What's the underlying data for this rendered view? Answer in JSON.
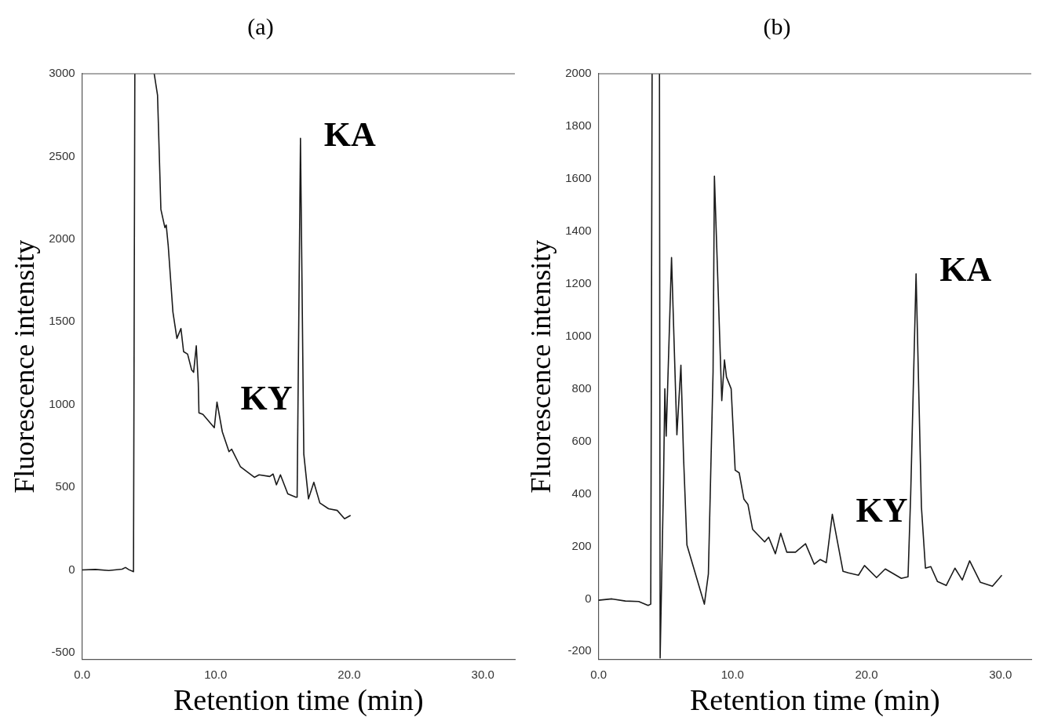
{
  "chart_data": [
    {
      "type": "line",
      "title": "(a)",
      "xlabel": "Retention time (min)",
      "ylabel": "Fluorescence intensity",
      "xlim": [
        0,
        32.4
      ],
      "ylim": [
        -540,
        3000
      ],
      "xticks": [
        {
          "value": 0,
          "label": "0.0"
        },
        {
          "value": 10,
          "label": "10.0"
        },
        {
          "value": 20,
          "label": "20.0"
        },
        {
          "value": 30,
          "label": "30.0"
        }
      ],
      "yticks": [
        -500,
        0,
        500,
        1000,
        1500,
        2000,
        2500,
        3000
      ],
      "grid": false,
      "legend": false,
      "marker": "none",
      "line_style": "solid",
      "annotations": [
        {
          "text": "KY",
          "x": 10.1,
          "y": 1015
        },
        {
          "text": "KA",
          "x": 16.35,
          "y": 2610
        }
      ],
      "series": [
        {
          "color": "#1a1a1a",
          "x": [
            0,
            1,
            2,
            3,
            3.25,
            3.5,
            3.85,
            3.95,
            4.7,
            5.4,
            5.65,
            5.9,
            6.2,
            6.3,
            6.45,
            6.8,
            7.1,
            7.4,
            7.6,
            7.9,
            8.2,
            8.35,
            8.55,
            8.7,
            8.75,
            9.05,
            9.9,
            10.1,
            10.5,
            11,
            11.2,
            11.85,
            12.9,
            13.25,
            14.05,
            14.3,
            14.55,
            14.85,
            15.4,
            16,
            16.1,
            16.35,
            16.6,
            16.95,
            17.35,
            17.8,
            18.45,
            19.1,
            19.65,
            20.1
          ],
          "values": [
            0,
            3,
            -3,
            5,
            15,
            2,
            -10,
            3000,
            null,
            3000,
            2870,
            2180,
            2070,
            2085,
            1960,
            1560,
            1400,
            1460,
            1320,
            1305,
            1210,
            1195,
            1355,
            1130,
            950,
            940,
            860,
            1015,
            835,
            715,
            730,
            625,
            560,
            575,
            565,
            580,
            515,
            575,
            460,
            440,
            440,
            2610,
            700,
            430,
            530,
            405,
            370,
            360,
            310,
            330
          ]
        }
      ]
    },
    {
      "type": "line",
      "title": "(b)",
      "xlabel": "Retention time (min)",
      "ylabel": "Fluorescence intensity",
      "xlim": [
        0,
        32.3
      ],
      "ylim": [
        -230,
        2000
      ],
      "xticks": [
        {
          "value": 0,
          "label": "0.0"
        },
        {
          "value": 10,
          "label": "10.0"
        },
        {
          "value": 20,
          "label": "20.0"
        },
        {
          "value": 30,
          "label": "30.0"
        }
      ],
      "yticks": [
        -200,
        0,
        200,
        400,
        600,
        800,
        1000,
        1200,
        1400,
        1600,
        1800,
        2000
      ],
      "grid": false,
      "legend": false,
      "marker": "none",
      "line_style": "solid",
      "annotations": [
        {
          "text": "KY",
          "x": 17.45,
          "y": 322
        },
        {
          "text": "KA",
          "x": 23.7,
          "y": 1238
        }
      ],
      "series": [
        {
          "color": "#1a1a1a",
          "x": [
            0,
            1,
            2,
            3,
            3.7,
            3.9,
            4,
            4.3,
            4.55,
            4.6,
            4.85,
            4.95,
            5.05,
            5.45,
            5.85,
            6.15,
            6.35,
            6.6,
            7.9,
            8.2,
            8.55,
            8.65,
            9.2,
            9.4,
            9.55,
            9.9,
            10.2,
            10.5,
            10.85,
            11.15,
            11.5,
            12.4,
            12.7,
            13.2,
            13.6,
            14.05,
            14.7,
            15.45,
            16.1,
            16.55,
            17,
            17.45,
            18.25,
            18.65,
            19.4,
            19.85,
            20.75,
            21.4,
            22.6,
            23.1,
            23.3,
            23.7,
            24.1,
            24.4,
            24.8,
            25.3,
            25.95,
            26.6,
            27.15,
            27.7,
            28.5,
            29.4,
            30.1
          ],
          "values": [
            -5,
            0,
            -8,
            -10,
            -25,
            -20,
            2000,
            null,
            2000,
            -225,
            440,
            800,
            620,
            1300,
            625,
            890,
            535,
            205,
            -20,
            95,
            865,
            1610,
            755,
            910,
            845,
            800,
            490,
            480,
            380,
            360,
            265,
            217,
            235,
            172,
            250,
            178,
            178,
            210,
            132,
            150,
            138,
            322,
            105,
            99,
            90,
            127,
            81,
            114,
            78,
            84,
            400,
            1238,
            350,
            117,
            123,
            66,
            51,
            117,
            72,
            145,
            63,
            48,
            90
          ]
        }
      ]
    }
  ]
}
